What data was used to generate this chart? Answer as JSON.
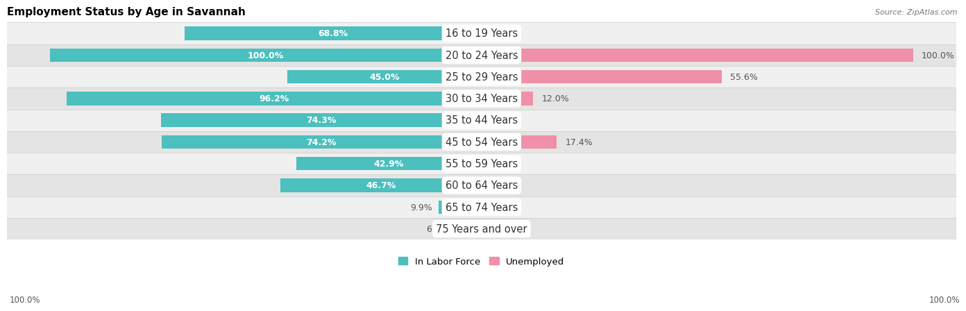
{
  "title": "Employment Status by Age in Savannah",
  "source": "Source: ZipAtlas.com",
  "categories": [
    "16 to 19 Years",
    "20 to 24 Years",
    "25 to 29 Years",
    "30 to 34 Years",
    "35 to 44 Years",
    "45 to 54 Years",
    "55 to 59 Years",
    "60 to 64 Years",
    "65 to 74 Years",
    "75 Years and over"
  ],
  "labor_force": [
    68.8,
    100.0,
    45.0,
    96.2,
    74.3,
    74.2,
    42.9,
    46.7,
    9.9,
    6.3
  ],
  "unemployed": [
    0.0,
    100.0,
    55.6,
    12.0,
    0.0,
    17.4,
    0.0,
    0.0,
    0.0,
    0.0
  ],
  "labor_color": "#4CBFBF",
  "unemployed_color": "#F08FA8",
  "row_light": "#F0F0F0",
  "row_dark": "#E4E4E4",
  "separator_color": "#CCCCCC",
  "label_fontsize": 9.0,
  "title_fontsize": 11,
  "cat_fontsize": 10.5,
  "axis_max": 100.0,
  "bar_height": 0.62
}
